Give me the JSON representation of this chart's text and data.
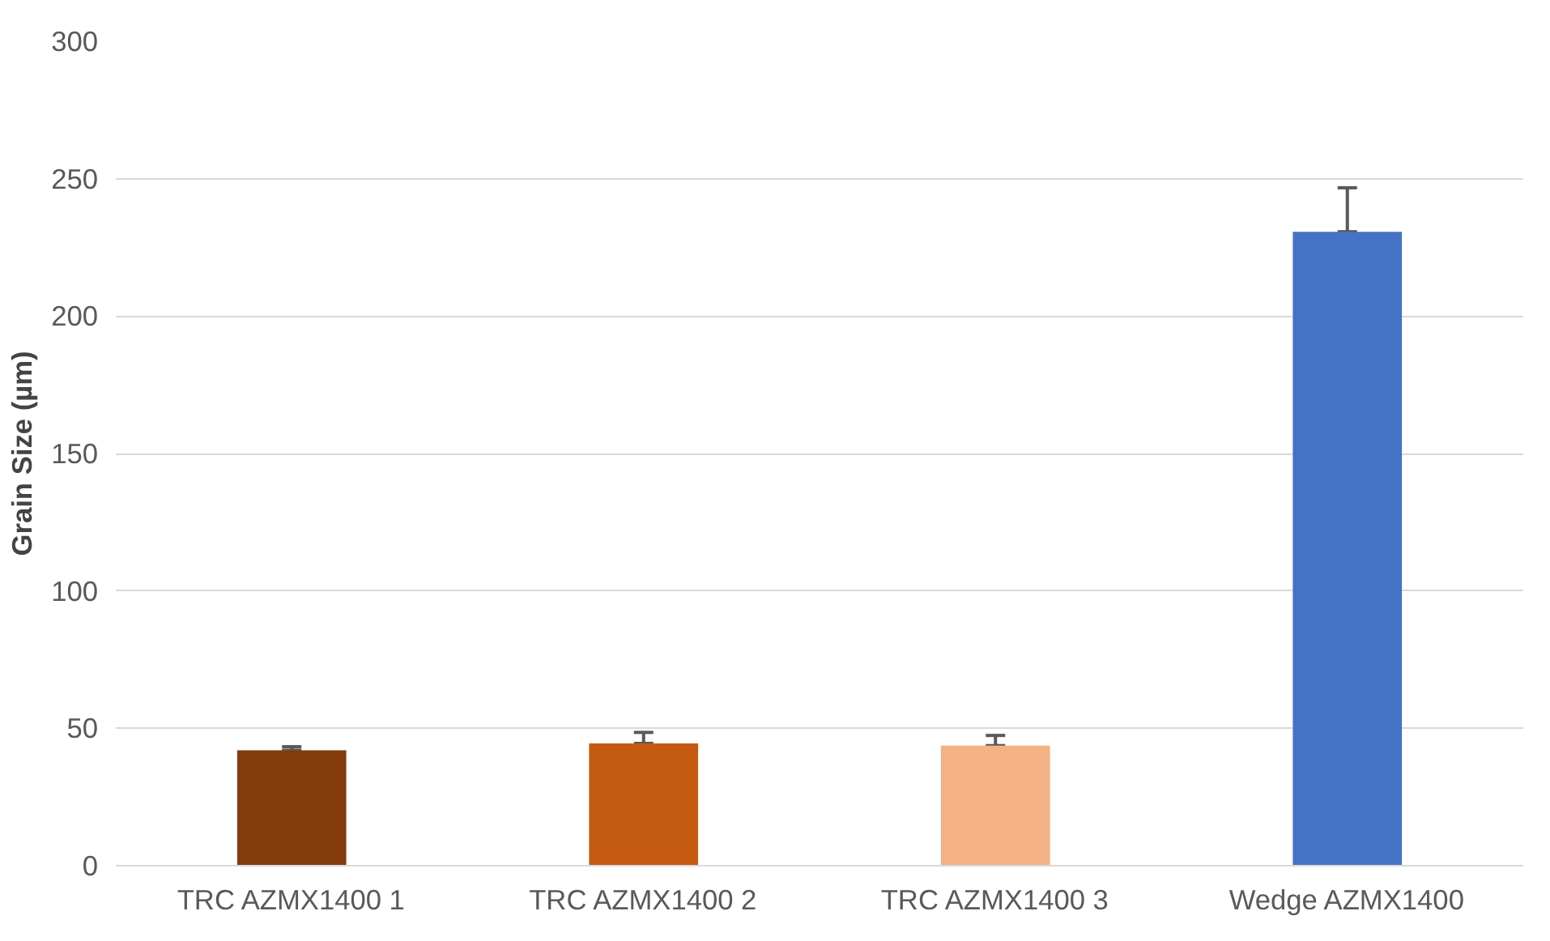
{
  "chart_data": {
    "type": "bar",
    "ylabel": "Grain Size (µm)",
    "categories": [
      "TRC AZMX1400 1",
      "TRC AZMX1400 2",
      "TRC AZMX1400 3",
      "Wedge AZMX1400"
    ],
    "values": [
      42,
      44.5,
      43.7,
      230.7
    ],
    "colors": [
      "#843c0c",
      "#c55a11",
      "#f4b183",
      "#4472c4"
    ],
    "errors": [
      [
        42,
        43.3
      ],
      [
        44.5,
        48.5
      ],
      [
        43.7,
        47.4
      ],
      [
        230.7,
        246.7
      ]
    ],
    "ylim": [
      0,
      300
    ],
    "yticks": [
      0,
      50,
      100,
      150,
      200,
      250,
      300
    ],
    "grid": "y"
  }
}
